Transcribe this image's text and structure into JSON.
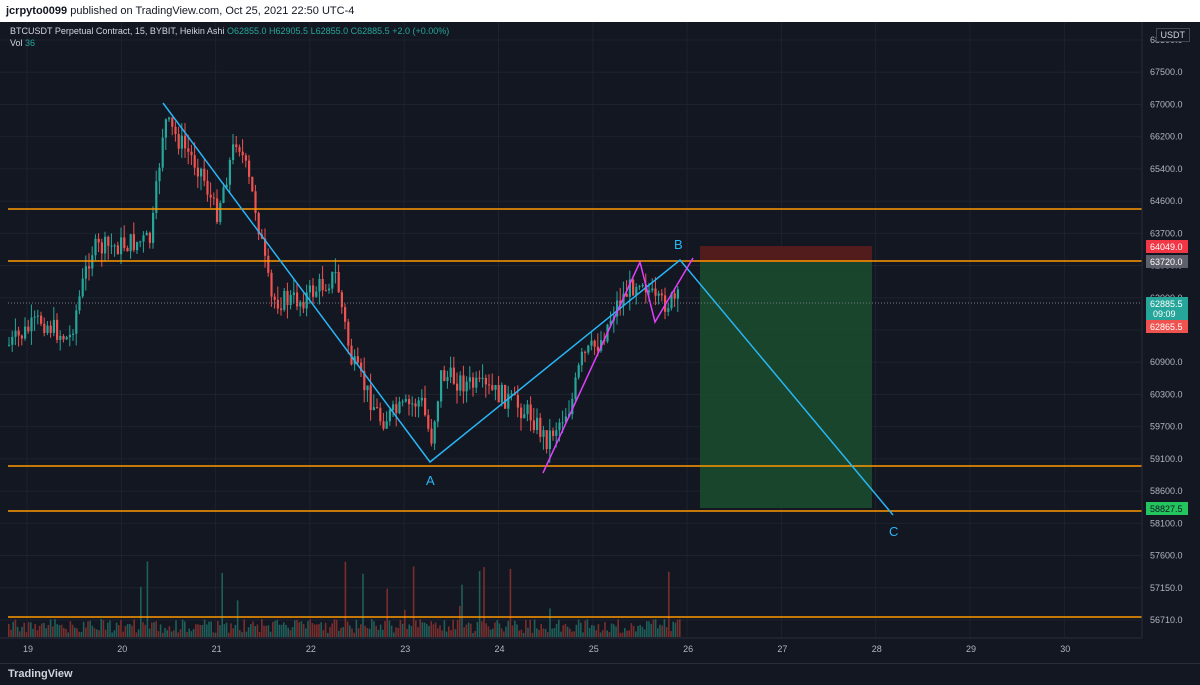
{
  "header": {
    "author": "jcrpyto0099",
    "published_text": "published on TradingView.com, Oct 25, 2021 22:50 UTC-4"
  },
  "legend": {
    "symbol": "BTCUSDT Perpetual Contract, 15, BYBIT, Heikin Ashi",
    "open": "O62855.0",
    "high": "H62905.5",
    "low": "L62855.0",
    "close": "C62885.5",
    "change": "+2.0 (+0.00%)",
    "vol_label": "Vol",
    "vol_value": "36"
  },
  "currency_badge": "USDT",
  "price_axis": [
    "68500.0",
    "67500.0",
    "67000.0",
    "66200.0",
    "65400.0",
    "64600.0",
    "63700.0",
    "62900.0",
    "62000.0",
    "61500.0",
    "60900.0",
    "60300.0",
    "59700.0",
    "59100.0",
    "58600.0",
    "58100.0",
    "57600.0",
    "57150.0",
    "56710.0"
  ],
  "price_badges": {
    "stop": "64049.0",
    "entry": "63720.0",
    "last": "62885.5",
    "countdown": "09:09",
    "prev": "62865.5",
    "target": "58827.5"
  },
  "time_axis": [
    "19",
    "20",
    "21",
    "22",
    "23",
    "24",
    "25",
    "26",
    "27",
    "28",
    "29",
    "30"
  ],
  "wave_labels": {
    "a": "A",
    "b": "B",
    "c": "C"
  },
  "colors": {
    "background": "#131722",
    "up": "#26a69a",
    "down": "#ef5350",
    "level": "#ff9800",
    "wave": "#29b6f6",
    "channel": "#e040fb",
    "profit_zone": "#1b4d2e",
    "stop_zone": "#5a1c1c"
  },
  "footer": {
    "brand": "TradingView"
  }
}
